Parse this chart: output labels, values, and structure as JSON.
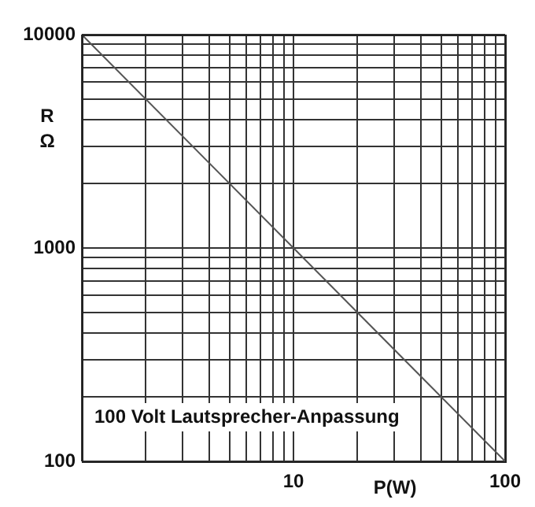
{
  "chart_data": {
    "type": "line",
    "log": "xy",
    "xlabel": "P(W)",
    "ylabel": "R Ω",
    "annotations": [
      "100 Volt Lautsprecher-Anpassung"
    ],
    "x": [
      1,
      100
    ],
    "series": [
      {
        "color": "#555555",
        "values": [
          10000,
          100
        ]
      }
    ],
    "xlim": [
      1,
      100
    ],
    "ylim": [
      100,
      10000
    ],
    "xticks": [
      {
        "value": 1,
        "label": null
      },
      {
        "value": 2,
        "label": null
      },
      {
        "value": 3,
        "label": null
      },
      {
        "value": 4,
        "label": null
      },
      {
        "value": 5,
        "label": null
      },
      {
        "value": 6,
        "label": null
      },
      {
        "value": 7,
        "label": null
      },
      {
        "value": 8,
        "label": null
      },
      {
        "value": 9,
        "label": null
      },
      10,
      {
        "value": 20,
        "label": null
      },
      {
        "value": 30,
        "label": null
      },
      {
        "value": 40,
        "label": null
      },
      {
        "value": 50,
        "label": null
      },
      {
        "value": 60,
        "label": null
      },
      {
        "value": 70,
        "label": null
      },
      {
        "value": 80,
        "label": null
      },
      {
        "value": 90,
        "label": null
      },
      100
    ],
    "yticks": [
      100,
      {
        "value": 200,
        "label": null
      },
      {
        "value": 300,
        "label": null
      },
      {
        "value": 400,
        "label": null
      },
      {
        "value": 500,
        "label": null
      },
      {
        "value": 600,
        "label": null
      },
      {
        "value": 700,
        "label": null
      },
      {
        "value": 800,
        "label": null
      },
      {
        "value": 900,
        "label": null
      },
      1000,
      {
        "value": 2000,
        "label": null
      },
      {
        "value": 3000,
        "label": null
      },
      {
        "value": 4000,
        "label": null
      },
      {
        "value": 5000,
        "label": null
      },
      {
        "value": 6000,
        "label": null
      },
      {
        "value": 7000,
        "label": null
      },
      {
        "value": 8000,
        "label": null
      },
      {
        "value": 9000,
        "label": null
      },
      10000
    ],
    "grid": true,
    "legend": false,
    "marker": "none",
    "line_style": "solid"
  }
}
